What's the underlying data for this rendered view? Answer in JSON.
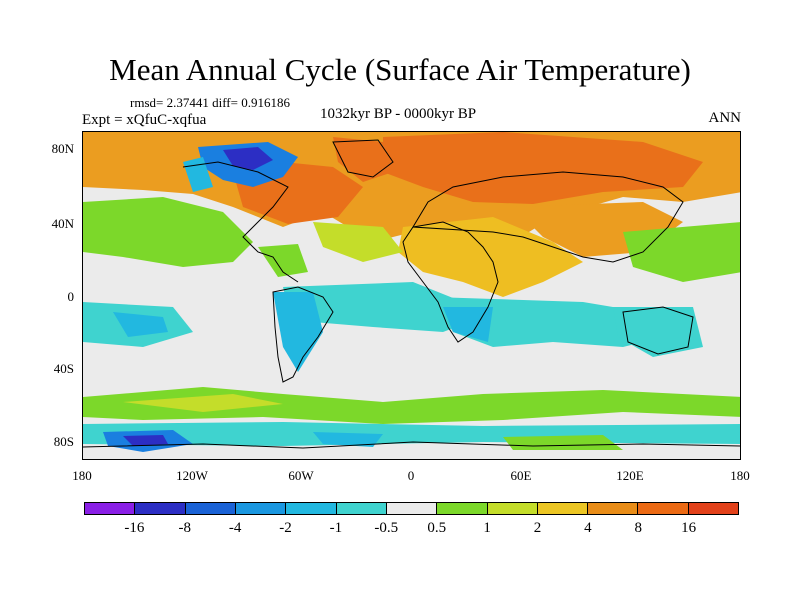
{
  "title": "Mean Annual Cycle (Surface Air Temperature)",
  "stats": "rmsd= 2.37441 diff= 0.916186",
  "experiment": "Expt = xQfuC-xqfua",
  "period": "1032kyr BP - 0000kyr BP",
  "season": "ANN",
  "y_ticks": [
    "80N",
    "40N",
    "0",
    "40S",
    "80S"
  ],
  "x_ticks": [
    "180",
    "120W",
    "60W",
    "0",
    "60E",
    "120E",
    "180"
  ],
  "colorbar": {
    "colors": [
      "#8a1fe6",
      "#2c2ec4",
      "#1a62d6",
      "#1a97e0",
      "#22b8e0",
      "#3fd3cf",
      "#ebebeb",
      "#7cd82a",
      "#c4dd2a",
      "#ecc624",
      "#e98d18",
      "#ec6a14",
      "#e2411a"
    ],
    "labels": [
      "-16",
      "-8",
      "-4",
      "-2",
      "-1",
      "-0.5",
      "0.5",
      "1",
      "2",
      "4",
      "8",
      "16"
    ]
  },
  "colors": {
    "strong_warm": "#e9701a",
    "warm": "#eb9d20",
    "mild_warm": "#eebe22",
    "slight_warm": "#c4dd2a",
    "weak_warm": "#7cd82a",
    "neutral": "#ebebeb",
    "weak_cool": "#3fd3cf",
    "cool": "#22b8e0",
    "cold": "#1a7fe0",
    "coldest": "#2c2ec4"
  }
}
